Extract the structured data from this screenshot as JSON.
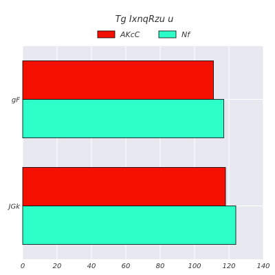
{
  "chart_data": {
    "type": "bar",
    "orientation": "horizontal",
    "title": "Tg IxnqRzu u",
    "xlabel": "",
    "ylabel": "",
    "categories": [
      "gF",
      "JGk"
    ],
    "series": [
      {
        "name": "AKcC",
        "values": [
          111,
          118
        ],
        "color": "#f41000"
      },
      {
        "name": "Nf",
        "values": [
          117,
          124
        ],
        "color": "#2dffc8"
      }
    ],
    "xlim": [
      0,
      140
    ],
    "xticks": [
      0,
      20,
      40,
      60,
      80,
      100,
      120,
      140
    ],
    "grid": true,
    "legend_placement": "top-center",
    "background_color": "#e8e8f0",
    "grid_color": "#ffffff"
  }
}
